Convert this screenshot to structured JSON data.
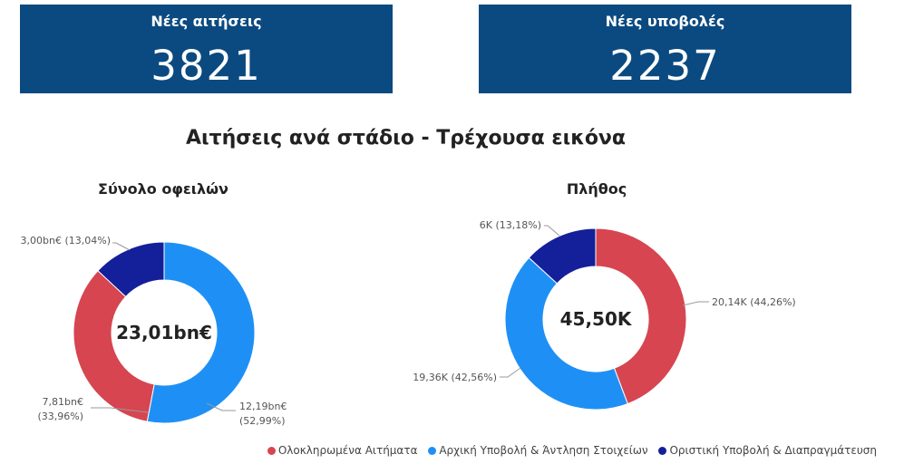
{
  "kpis": [
    {
      "title": "Νέες αιτήσεις",
      "value": "3821"
    },
    {
      "title": "Νέες υποβολές",
      "value": "2237"
    }
  ],
  "main_title": "Αιτήσεις ανά στάδιο - Τρέχουσα εικόνα",
  "legend": [
    {
      "label": "Ολοκληρωμένα Αιτήματα",
      "color": "#d64550"
    },
    {
      "label": "Αρχική Υποβολή & Άντληση Στοιχείων",
      "color": "#1e90f5"
    },
    {
      "label": "Οριστική Υποβολή & Διαπραγμάτευση",
      "color": "#13209a"
    }
  ],
  "chart_data": [
    {
      "type": "pie",
      "title": "Σύνολο οφειλών",
      "center_label": "23,01bn€",
      "categories": [
        "Ολοκληρωμένα Αιτήματα",
        "Αρχική Υποβολή & Άντληση Στοιχείων",
        "Οριστική Υποβολή & Διαπραγμάτευση"
      ],
      "values": [
        7.81,
        12.19,
        3.0
      ],
      "percents": [
        33.96,
        52.99,
        13.04
      ],
      "labels": [
        [
          "7,81bn€",
          "(33,96%)"
        ],
        [
          "12,19bn€",
          "(52,99%)"
        ],
        [
          "3,00bn€ (13,04%)"
        ]
      ]
    },
    {
      "type": "pie",
      "title": "Πλήθος",
      "center_label": "45,50K",
      "categories": [
        "Ολοκληρωμένα Αιτήματα",
        "Αρχική Υποβολή & Άντληση Στοιχείων",
        "Οριστική Υποβολή & Διαπραγμάτευση"
      ],
      "values": [
        20.14,
        19.36,
        6.0
      ],
      "percents": [
        44.26,
        42.56,
        13.18
      ],
      "labels": [
        [
          "20,14K (44,26%)"
        ],
        [
          "19,36K (42,56%)"
        ],
        [
          "6K (13,18%)"
        ]
      ]
    }
  ]
}
